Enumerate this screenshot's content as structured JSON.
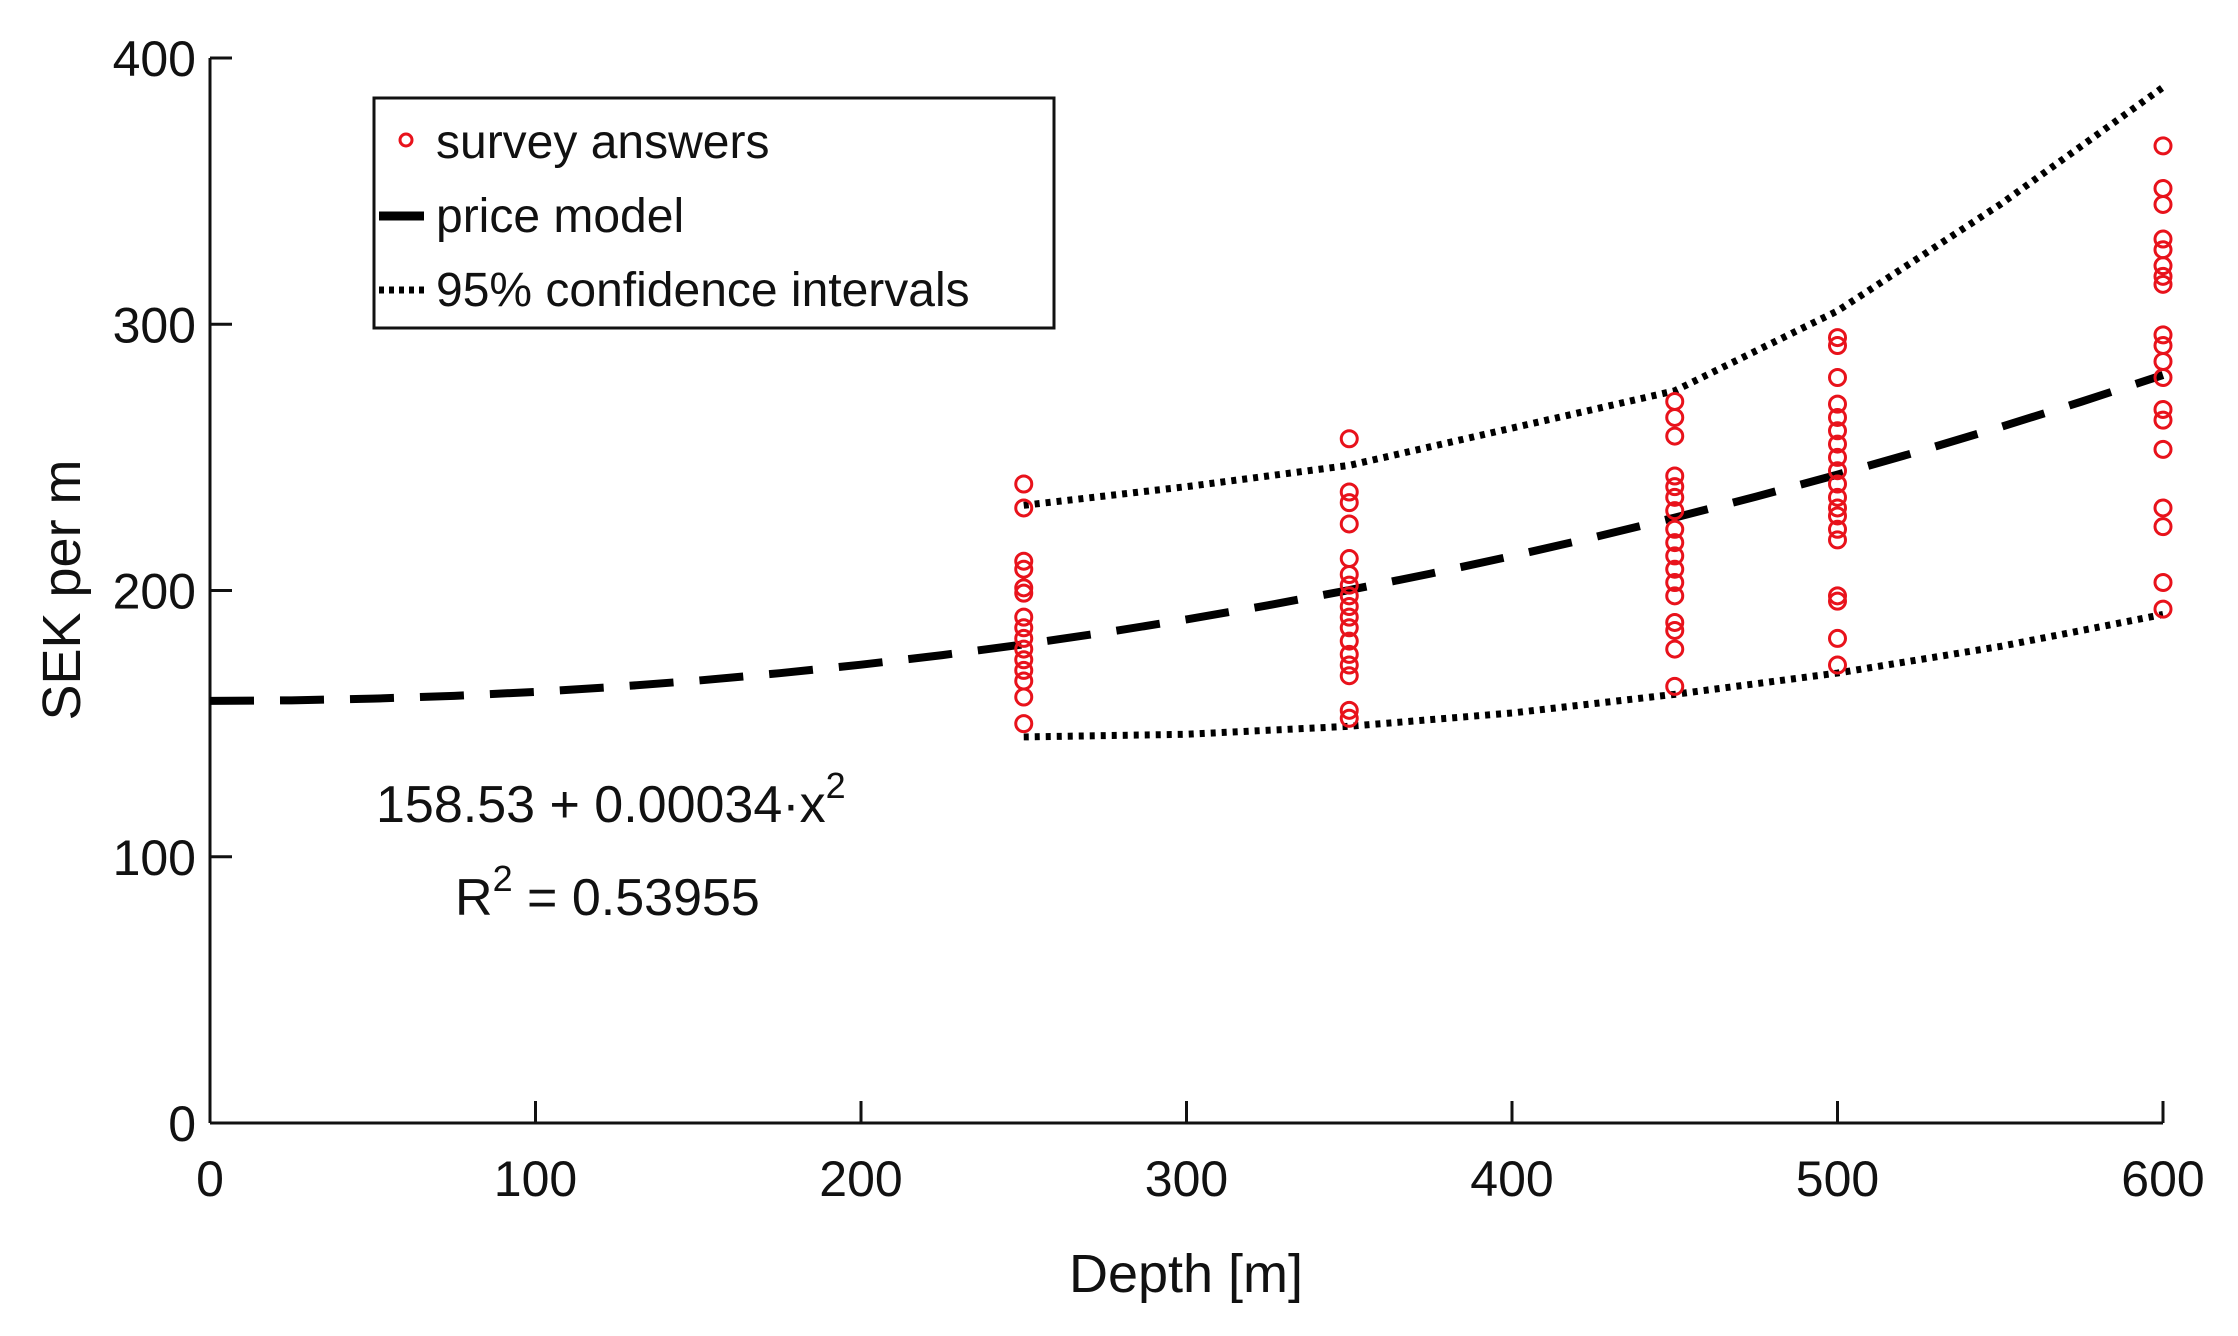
{
  "chart_data": {
    "type": "scatter",
    "title": "",
    "xlabel": "Depth [m]",
    "ylabel": "SEK per m",
    "xlim": [
      0,
      600
    ],
    "ylim": [
      0,
      400
    ],
    "xticks": [
      0,
      100,
      200,
      300,
      400,
      500,
      600
    ],
    "yticks": [
      0,
      100,
      200,
      300,
      400
    ],
    "grid": false,
    "legend_position": "top-left",
    "legend": {
      "survey": "survey answers",
      "model": "price model",
      "ci": "95% confidence intervals"
    },
    "annotation": {
      "equation": "158.53 + 0.00034·x",
      "equation_exp": "2",
      "r2_label": "R",
      "r2_exp": "2",
      "r2_value": " = 0.53955"
    },
    "series": [
      {
        "name": "survey answers",
        "style": "red-circles",
        "color": "#e8121b",
        "points": [
          [
            250,
            240
          ],
          [
            250,
            231
          ],
          [
            250,
            211
          ],
          [
            250,
            208
          ],
          [
            250,
            201
          ],
          [
            250,
            199
          ],
          [
            250,
            190
          ],
          [
            250,
            186
          ],
          [
            250,
            182
          ],
          [
            250,
            178
          ],
          [
            250,
            174
          ],
          [
            250,
            170
          ],
          [
            250,
            166
          ],
          [
            250,
            160
          ],
          [
            250,
            150
          ],
          [
            350,
            257
          ],
          [
            350,
            237
          ],
          [
            350,
            233
          ],
          [
            350,
            225
          ],
          [
            350,
            212
          ],
          [
            350,
            206
          ],
          [
            350,
            202
          ],
          [
            350,
            198
          ],
          [
            350,
            194
          ],
          [
            350,
            190
          ],
          [
            350,
            186
          ],
          [
            350,
            181
          ],
          [
            350,
            176
          ],
          [
            350,
            172
          ],
          [
            350,
            168
          ],
          [
            350,
            155
          ],
          [
            350,
            152
          ],
          [
            450,
            271
          ],
          [
            450,
            265
          ],
          [
            450,
            258
          ],
          [
            450,
            243
          ],
          [
            450,
            239
          ],
          [
            450,
            235
          ],
          [
            450,
            230
          ],
          [
            450,
            223
          ],
          [
            450,
            218
          ],
          [
            450,
            213
          ],
          [
            450,
            208
          ],
          [
            450,
            203
          ],
          [
            450,
            198
          ],
          [
            450,
            188
          ],
          [
            450,
            185
          ],
          [
            450,
            178
          ],
          [
            450,
            164
          ],
          [
            500,
            295
          ],
          [
            500,
            292
          ],
          [
            500,
            280
          ],
          [
            500,
            270
          ],
          [
            500,
            265
          ],
          [
            500,
            260
          ],
          [
            500,
            255
          ],
          [
            500,
            250
          ],
          [
            500,
            245
          ],
          [
            500,
            240
          ],
          [
            500,
            235
          ],
          [
            500,
            231
          ],
          [
            500,
            228
          ],
          [
            500,
            223
          ],
          [
            500,
            219
          ],
          [
            500,
            198
          ],
          [
            500,
            196
          ],
          [
            500,
            182
          ],
          [
            500,
            172
          ],
          [
            600,
            367
          ],
          [
            600,
            351
          ],
          [
            600,
            345
          ],
          [
            600,
            332
          ],
          [
            600,
            328
          ],
          [
            600,
            322
          ],
          [
            600,
            318
          ],
          [
            600,
            315
          ],
          [
            600,
            296
          ],
          [
            600,
            292
          ],
          [
            600,
            286
          ],
          [
            600,
            280
          ],
          [
            600,
            268
          ],
          [
            600,
            264
          ],
          [
            600,
            253
          ],
          [
            600,
            231
          ],
          [
            600,
            224
          ],
          [
            600,
            203
          ],
          [
            600,
            193
          ]
        ]
      },
      {
        "name": "price model",
        "style": "dashed",
        "color": "#000000",
        "x": [
          0,
          25,
          50,
          75,
          100,
          125,
          150,
          175,
          200,
          225,
          250,
          275,
          300,
          325,
          350,
          375,
          400,
          425,
          450,
          475,
          500,
          525,
          550,
          575,
          600
        ],
        "y": [
          158.53,
          158.74,
          159.38,
          160.44,
          161.93,
          163.84,
          166.18,
          168.94,
          172.13,
          175.74,
          179.78,
          184.24,
          189.13,
          194.44,
          200.18,
          206.34,
          212.93,
          219.94,
          227.38,
          235.24,
          243.53,
          252.24,
          261.38,
          270.94,
          280.93
        ]
      },
      {
        "name": "95% confidence interval (upper)",
        "style": "dotted",
        "color": "#000000",
        "x": [
          250,
          300,
          350,
          400,
          450,
          500,
          550,
          600
        ],
        "y": [
          232,
          239,
          247,
          261,
          275,
          305,
          345,
          389
        ]
      },
      {
        "name": "95% confidence interval (lower)",
        "style": "dotted",
        "color": "#000000",
        "x": [
          250,
          300,
          350,
          400,
          450,
          500,
          550,
          600
        ],
        "y": [
          145,
          146,
          149,
          154,
          161,
          169,
          179,
          191
        ]
      }
    ]
  }
}
